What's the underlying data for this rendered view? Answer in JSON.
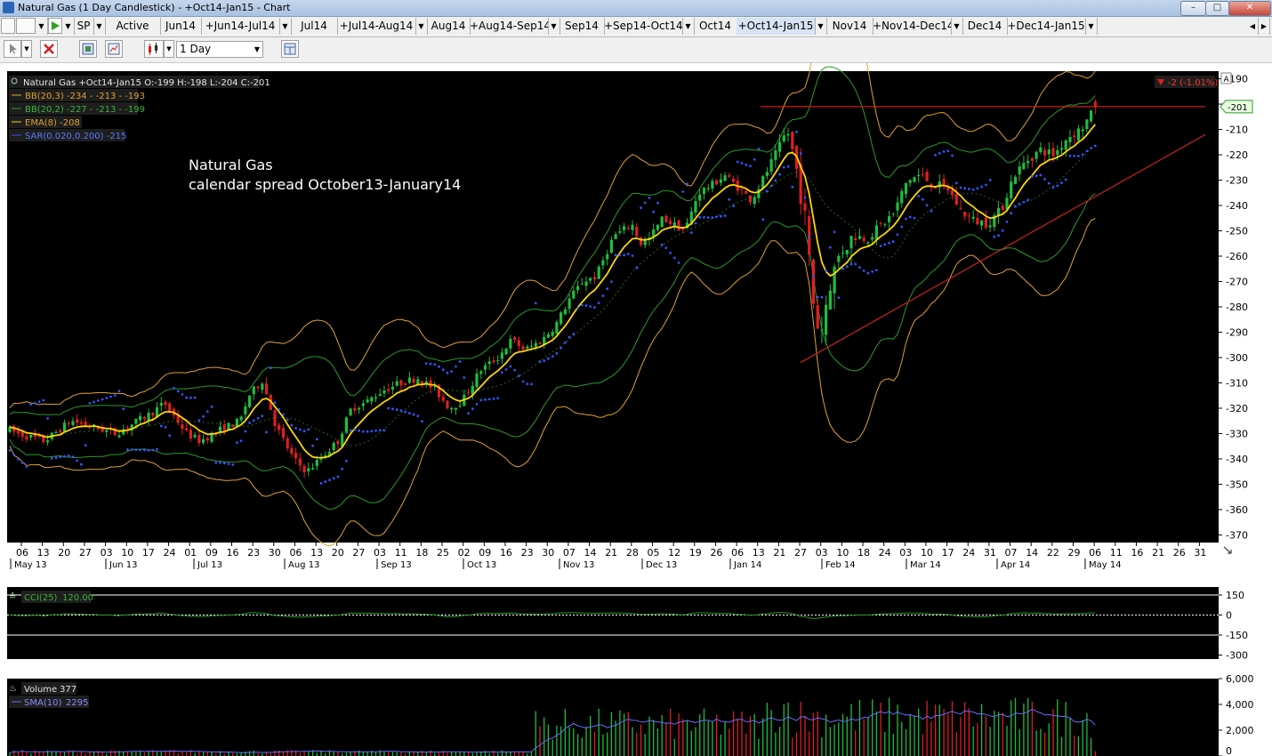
{
  "window": {
    "title": "Natural Gas (1 Day Candlestick) - +Oct14-Jan15 - Chart",
    "minimize_glyph": "–",
    "restore_glyph": "□",
    "close_glyph": "✕"
  },
  "tabs": {
    "symbol": "SP",
    "items": [
      {
        "label": "Active",
        "dropdown": false
      },
      {
        "label": "Jun14",
        "dropdown": false
      },
      {
        "label": "+Jun14-Jul14",
        "dropdown": true
      },
      {
        "label": "Jul14",
        "dropdown": false
      },
      {
        "label": "+Jul14-Aug14",
        "dropdown": true
      },
      {
        "label": "Aug14",
        "dropdown": false
      },
      {
        "label": "+Aug14-Sep14",
        "dropdown": true
      },
      {
        "label": "Sep14",
        "dropdown": false
      },
      {
        "label": "+Sep14-Oct14",
        "dropdown": true
      },
      {
        "label": "Oct14",
        "dropdown": false
      },
      {
        "label": "+Oct14-Jan15",
        "dropdown": true,
        "active": true
      },
      {
        "label": "Nov14",
        "dropdown": false
      },
      {
        "label": "+Nov14-Dec14",
        "dropdown": true
      },
      {
        "label": "Dec14",
        "dropdown": false
      },
      {
        "label": "+Dec14-Jan15",
        "dropdown": true
      }
    ],
    "scroll_left": "◀",
    "scroll_right": "▶"
  },
  "toolbar": {
    "interval": "1 Day",
    "icons": [
      "cursor-icon",
      "delete-icon",
      "template-icon",
      "indicator-icon",
      "chart-type-icon",
      "layout-icon"
    ]
  },
  "colors": {
    "up": "#1ebe3c",
    "down": "#e01e1e",
    "ema": "#ffd700",
    "bb_outer": "#e0a030",
    "bb_inner": "#2a9a2a",
    "sar": "#3355ff",
    "resistance": "#cc2020",
    "cci_fill": "#86c8c8",
    "sma": "#6a6aff"
  },
  "legend": {
    "instrument": "Natural Gas +Oct14-Jan15 O:-199 H:-198 L:-204 C:-201",
    "bb_outer": "BB(20,3) -234 - -213 - -193",
    "bb_inner": "BB(20,2) -227 - -213 - -199",
    "ema": "EMA(8) -208",
    "sar": "SAR(0.020,0.200) -215"
  },
  "annotation": {
    "line1": "Natural Gas",
    "line2": "calendar spread October13-January14"
  },
  "change_badge": "-2 (-1.01%)",
  "last_price_tag": "-201",
  "scroll_marker": "A",
  "chart_data": {
    "type": "candlestick",
    "instrument": "Natural Gas +Oct14-Jan15",
    "interval": "1 Day",
    "last_bar": {
      "open": -199,
      "high": -198,
      "low": -204,
      "close": -201
    },
    "change": -2,
    "change_pct": -1.01,
    "y_ticks": [
      "-190",
      "-200",
      "-210",
      "-220",
      "-230",
      "-240",
      "-250",
      "-260",
      "-270",
      "-280",
      "-290",
      "-300",
      "-310",
      "-320",
      "-330",
      "-340",
      "-350",
      "-360",
      "-370"
    ],
    "ylim": [
      -373,
      -187
    ],
    "x_day_labels": [
      "06",
      "13",
      "20",
      "27",
      "03",
      "10",
      "17",
      "24",
      "01",
      "09",
      "16",
      "23",
      "30",
      "06",
      "13",
      "20",
      "27",
      "03",
      "11",
      "18",
      "25",
      "02",
      "09",
      "16",
      "23",
      "30",
      "07",
      "14",
      "21",
      "28",
      "05",
      "12",
      "19",
      "26",
      "06",
      "13",
      "21",
      "27",
      "03",
      "10",
      "18",
      "24",
      "03",
      "10",
      "17",
      "24",
      "31",
      "07",
      "14",
      "22",
      "29",
      "06",
      "11",
      "16",
      "21",
      "26",
      "31"
    ],
    "x_month_labels": [
      "May 13",
      "Jun 13",
      "Jul 13",
      "Aug 13",
      "Sep 13",
      "Oct 13",
      "Nov 13",
      "Dec 13",
      "Jan 14",
      "Feb 14",
      "Mar 14",
      "Apr 14",
      "May 14"
    ],
    "price_path": [
      [
        0,
        -327
      ],
      [
        20,
        -330
      ],
      [
        50,
        -333
      ],
      [
        80,
        -325
      ],
      [
        110,
        -328
      ],
      [
        130,
        -330
      ],
      [
        150,
        -326
      ],
      [
        170,
        -322
      ],
      [
        185,
        -318
      ],
      [
        210,
        -330
      ],
      [
        225,
        -333
      ],
      [
        250,
        -328
      ],
      [
        270,
        -325
      ],
      [
        280,
        -315
      ],
      [
        295,
        -309
      ],
      [
        310,
        -327
      ],
      [
        330,
        -340
      ],
      [
        345,
        -345
      ],
      [
        360,
        -340
      ],
      [
        380,
        -333
      ],
      [
        395,
        -320
      ],
      [
        410,
        -318
      ],
      [
        430,
        -313
      ],
      [
        450,
        -310
      ],
      [
        470,
        -308
      ],
      [
        490,
        -313
      ],
      [
        505,
        -320
      ],
      [
        520,
        -317
      ],
      [
        540,
        -305
      ],
      [
        560,
        -300
      ],
      [
        575,
        -293
      ],
      [
        590,
        -297
      ],
      [
        610,
        -293
      ],
      [
        625,
        -287
      ],
      [
        640,
        -277
      ],
      [
        655,
        -270
      ],
      [
        670,
        -268
      ],
      [
        690,
        -252
      ],
      [
        700,
        -250
      ],
      [
        710,
        -247
      ],
      [
        720,
        -255
      ],
      [
        730,
        -253
      ],
      [
        745,
        -245
      ],
      [
        760,
        -248
      ],
      [
        770,
        -250
      ],
      [
        785,
        -235
      ],
      [
        800,
        -232
      ],
      [
        815,
        -228
      ],
      [
        830,
        -233
      ],
      [
        845,
        -238
      ],
      [
        860,
        -228
      ],
      [
        875,
        -218
      ],
      [
        885,
        -210
      ],
      [
        895,
        -225
      ],
      [
        905,
        -245
      ],
      [
        915,
        -280
      ],
      [
        922,
        -292
      ],
      [
        932,
        -272
      ],
      [
        945,
        -258
      ],
      [
        960,
        -252
      ],
      [
        975,
        -253
      ],
      [
        990,
        -248
      ],
      [
        1005,
        -243
      ],
      [
        1020,
        -230
      ],
      [
        1035,
        -228
      ],
      [
        1050,
        -232
      ],
      [
        1065,
        -233
      ],
      [
        1080,
        -242
      ],
      [
        1095,
        -246
      ],
      [
        1110,
        -247
      ],
      [
        1125,
        -242
      ],
      [
        1140,
        -228
      ],
      [
        1155,
        -222
      ],
      [
        1170,
        -218
      ],
      [
        1185,
        -220
      ],
      [
        1200,
        -213
      ],
      [
        1215,
        -210
      ],
      [
        1225,
        -205
      ],
      [
        1235,
        -201
      ]
    ],
    "ema_period": 8,
    "bollinger": [
      {
        "name": "BB(20,3)",
        "last": [
          -234,
          -213,
          -193
        ]
      },
      {
        "name": "BB(20,2)",
        "last": [
          -227,
          -213,
          -199
        ]
      }
    ],
    "sar": {
      "params": "0.020,0.200",
      "last": -215
    },
    "resistance_line": {
      "x": [
        855,
        1355
      ],
      "y": [
        -201,
        -201
      ]
    },
    "support_line": {
      "x": [
        900,
        1355
      ],
      "y": [
        -302,
        -212
      ]
    },
    "cci": {
      "name": "CCI(25)",
      "last": 120.0,
      "ticks": [
        "150",
        "0",
        "-150",
        "-300"
      ],
      "ylim": [
        -330,
        210
      ]
    },
    "volume": {
      "name": "Volume",
      "last": 377,
      "sma_name": "SMA(10)",
      "sma_last": 2295,
      "ticks": [
        "6,000",
        "4,000",
        "2,000",
        "0"
      ],
      "ylim": [
        0,
        6000
      ]
    }
  }
}
